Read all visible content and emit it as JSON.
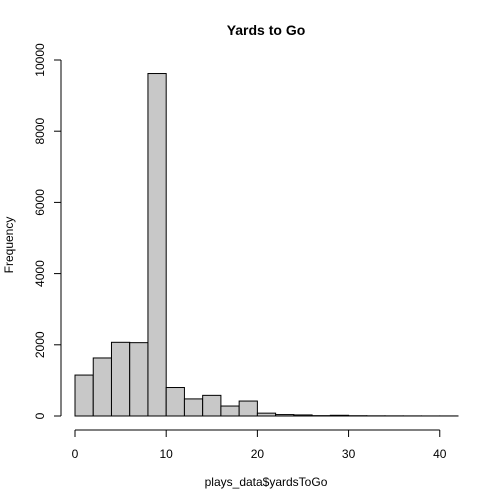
{
  "chart_data": {
    "type": "bar",
    "title": "Yards to Go",
    "xlabel": "plays_data$yardsToGo",
    "ylabel": "Frequency",
    "bin_edges": [
      0,
      2,
      4,
      6,
      8,
      10,
      12,
      14,
      16,
      18,
      20,
      22,
      24,
      26,
      28,
      30,
      32,
      34,
      36,
      38,
      40,
      42
    ],
    "values": [
      1150,
      1630,
      2070,
      2060,
      9620,
      800,
      480,
      580,
      280,
      420,
      80,
      40,
      30,
      10,
      20,
      8,
      5,
      4,
      3,
      2,
      2
    ],
    "xlim": [
      0,
      42
    ],
    "ylim": [
      0,
      10000
    ],
    "x_ticks": [
      0,
      10,
      20,
      30,
      40
    ],
    "y_ticks": [
      0,
      2000,
      4000,
      6000,
      8000,
      10000
    ],
    "grid": false,
    "bar_color": "#c8c8c8",
    "border_color": "#000000"
  }
}
